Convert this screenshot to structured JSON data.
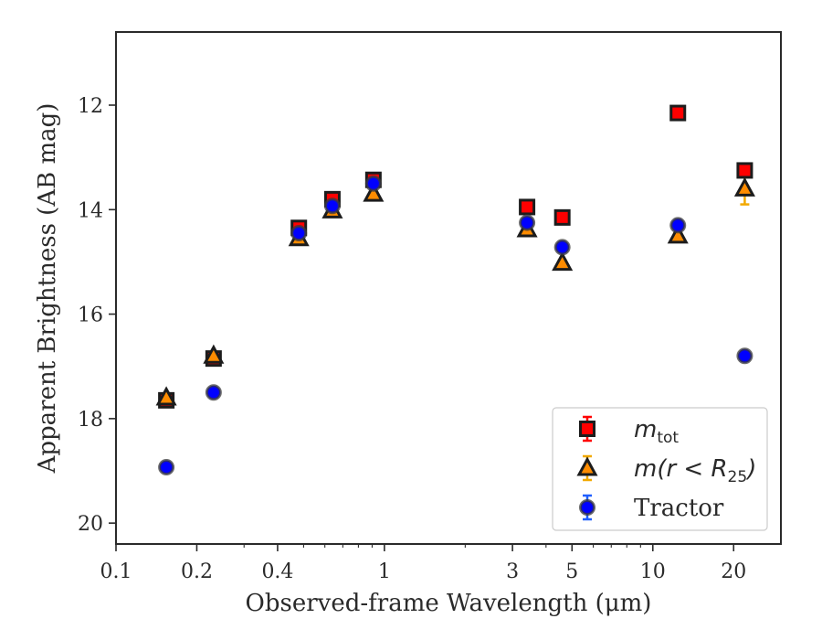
{
  "chart_data": {
    "type": "scatter",
    "xlabel": "Observed-frame Wavelength (μm)",
    "ylabel": "Apparent Brightness (AB mag)",
    "x_scale": "log",
    "xlim": [
      0.1,
      30
    ],
    "ylim": [
      20.4,
      10.6
    ],
    "y_inverted": true,
    "x_ticks": [
      0.1,
      0.2,
      0.4,
      1,
      3,
      5,
      10,
      20
    ],
    "x_tick_labels": [
      "0.1",
      "0.2",
      "0.4",
      "1",
      "3",
      "5",
      "10",
      "20"
    ],
    "y_ticks": [
      12,
      14,
      16,
      18,
      20
    ],
    "y_tick_labels": [
      "12",
      "14",
      "16",
      "18",
      "20"
    ],
    "grid": false,
    "legend_position": "lower-right",
    "legend": {
      "mtot_main": "m",
      "mtot_sub": "tot",
      "mr_prefix": "m(r < R",
      "mr_sub": "25",
      "mr_suffix": ")",
      "tractor": "Tractor"
    },
    "series": [
      {
        "key": "mtot",
        "marker": "square",
        "color": "#ff0000",
        "error_color": "#ff0000",
        "x": [
          0.154,
          0.231,
          0.48,
          0.64,
          0.91,
          3.4,
          4.6,
          12.4,
          22.0
        ],
        "y": [
          17.65,
          16.85,
          14.35,
          13.8,
          13.43,
          13.95,
          14.15,
          12.15,
          13.25
        ],
        "yerr": [
          0.05,
          0.05,
          0.04,
          0.04,
          0.04,
          0.04,
          0.04,
          0.03,
          0.04
        ]
      },
      {
        "key": "mr25",
        "marker": "triangle",
        "color": "#ff8c00",
        "error_color": "#f2a900",
        "x": [
          0.154,
          0.231,
          0.48,
          0.64,
          0.91,
          3.4,
          4.6,
          12.4,
          22.0
        ],
        "y": [
          17.6,
          16.8,
          14.55,
          14.02,
          13.7,
          14.38,
          15.02,
          14.5,
          13.6
        ],
        "yerr": [
          0.04,
          0.04,
          0.03,
          0.03,
          0.03,
          0.04,
          0.05,
          0.05,
          0.3
        ]
      },
      {
        "key": "tractor",
        "marker": "circle",
        "color": "#0000ff",
        "error_color": "#1f5fff",
        "x": [
          0.154,
          0.231,
          0.48,
          0.64,
          0.91,
          3.4,
          4.6,
          12.4,
          22.0
        ],
        "y": [
          18.93,
          17.5,
          14.45,
          13.93,
          13.5,
          14.25,
          14.72,
          14.3,
          16.8
        ],
        "yerr": [
          0.05,
          0.05,
          0.03,
          0.03,
          0.03,
          0.03,
          0.04,
          0.04,
          0.06
        ]
      }
    ]
  }
}
